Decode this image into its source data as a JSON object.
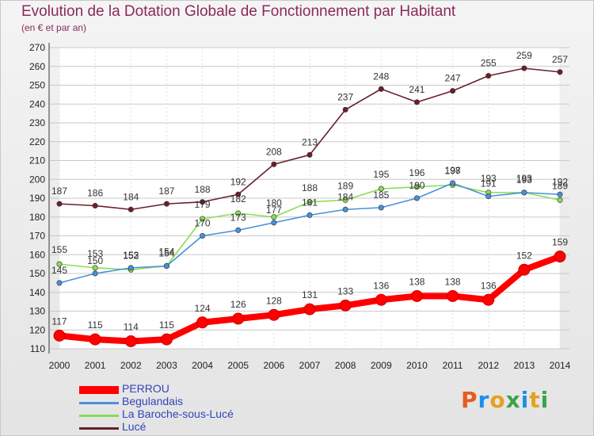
{
  "header": {
    "title": "Evolution de la Dotation Globale de Fonctionnement par Habitant",
    "subtitle": "(en € et par an)"
  },
  "brand": {
    "text": "Proxiti",
    "colors": [
      "#e65c1e",
      "#1e8ee6",
      "#e6a01e",
      "#3aa34a",
      "#1e8ee6",
      "#e6a01e",
      "#3aa34a"
    ]
  },
  "chart_data": {
    "type": "line",
    "title": "Evolution de la Dotation Globale de Fonctionnement par Habitant",
    "subtitle": "(en € et par an)",
    "xlabel": "",
    "ylabel": "",
    "x": [
      "2000",
      "2001",
      "2002",
      "2003",
      "2004",
      "2005",
      "2006",
      "2007",
      "2008",
      "2009",
      "2010",
      "2011",
      "2012",
      "2013",
      "2014"
    ],
    "ylim": [
      110,
      270
    ],
    "yticks": [
      110,
      120,
      130,
      140,
      150,
      160,
      170,
      180,
      190,
      200,
      210,
      220,
      230,
      240,
      250,
      260,
      270
    ],
    "grid": true,
    "legend_position": "bottom-left",
    "series": [
      {
        "name": "PERROU",
        "color": "#ff0000",
        "emphasis": true,
        "values": [
          117,
          115,
          114,
          115,
          124,
          126,
          128,
          131,
          133,
          136,
          138,
          138,
          136,
          152,
          159
        ]
      },
      {
        "name": "Begulandais",
        "color": "#4a90d9",
        "values": [
          145,
          150,
          153,
          154,
          170,
          173,
          177,
          181,
          184,
          185,
          190,
          198,
          191,
          193,
          192
        ]
      },
      {
        "name": "La Baroche-sous-Lucé",
        "color": "#88dd55",
        "values": [
          155,
          153,
          152,
          154,
          179,
          182,
          180,
          188,
          189,
          195,
          196,
          197,
          193,
          193,
          189
        ]
      },
      {
        "name": "Lucé",
        "color": "#6b1f2a",
        "values": [
          187,
          186,
          184,
          187,
          188,
          192,
          208,
          213,
          237,
          248,
          241,
          247,
          255,
          259,
          257
        ]
      }
    ]
  }
}
